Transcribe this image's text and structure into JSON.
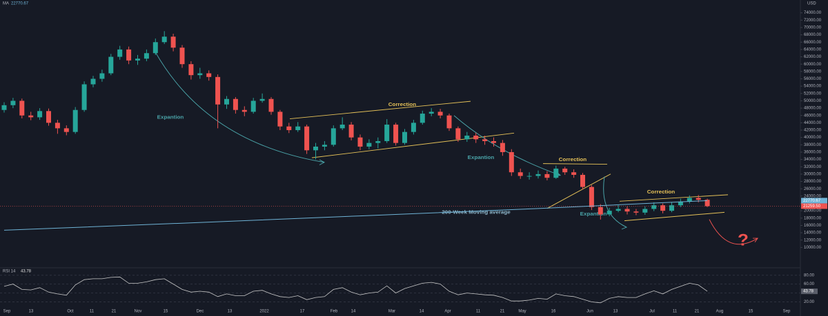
{
  "chart_data": {
    "type": "candlestick",
    "currency": "USD",
    "candles": {
      "up_color": "#26a69a",
      "down_color": "#ef5350",
      "open": [
        47500,
        48800,
        50000,
        46000,
        45500,
        47200,
        44000,
        42500,
        41500,
        47500,
        54500,
        56000,
        57500,
        62000,
        64000,
        61000,
        61500,
        63000,
        66000,
        67500,
        64500,
        60000,
        57000,
        57500,
        56500,
        49000,
        50500,
        47500,
        47000,
        50000,
        50500,
        47000,
        43000,
        42000,
        43000,
        36500,
        37500,
        38000,
        42500,
        43500,
        40000,
        37500,
        38500,
        39000,
        43500,
        38500,
        41500,
        44000,
        46500,
        47000,
        46000,
        42500,
        39500,
        40500,
        39500,
        39000,
        38500,
        36000,
        30500,
        29500,
        29500,
        30000,
        29000,
        31500,
        30500,
        29800,
        26500,
        21000,
        19000,
        20000,
        20500,
        19800,
        19500,
        20500,
        21500,
        20000,
        21500,
        22500,
        23500,
        23000
      ],
      "high": [
        49600,
        50800,
        50600,
        47000,
        48000,
        47900,
        44800,
        43300,
        48300,
        55300,
        56800,
        58500,
        62800,
        65000,
        64800,
        62500,
        64000,
        67000,
        69000,
        68300,
        65200,
        60800,
        59000,
        58300,
        57200,
        51300,
        51000,
        48500,
        50800,
        52000,
        51000,
        47500,
        44000,
        44200,
        43500,
        38500,
        39000,
        43300,
        45500,
        44200,
        40800,
        39500,
        40000,
        45000,
        44000,
        42300,
        44800,
        47300,
        48000,
        47800,
        46500,
        43000,
        41500,
        41300,
        40500,
        40000,
        39300,
        36800,
        31500,
        30500,
        31000,
        30800,
        32300,
        32000,
        31300,
        30300,
        27000,
        21800,
        20800,
        21500,
        21200,
        20500,
        21200,
        22300,
        22000,
        22300,
        23300,
        24200,
        24300,
        23300
      ],
      "low": [
        46800,
        48000,
        45200,
        44700,
        44800,
        43200,
        41000,
        40600,
        41000,
        47000,
        53700,
        55200,
        57000,
        61200,
        60000,
        59800,
        60800,
        62500,
        65500,
        63500,
        59000,
        55800,
        56000,
        55500,
        42500,
        47800,
        46500,
        45800,
        46500,
        49500,
        46200,
        42000,
        41200,
        41500,
        35500,
        34000,
        36500,
        37500,
        42000,
        39200,
        36500,
        36800,
        37000,
        38500,
        37800,
        38000,
        40800,
        43500,
        45800,
        45200,
        41800,
        38800,
        38800,
        38500,
        38000,
        37500,
        35000,
        29500,
        28700,
        28500,
        28800,
        28300,
        28700,
        29800,
        29000,
        25800,
        20200,
        17600,
        18500,
        19600,
        19000,
        18800,
        18900,
        19900,
        19300,
        19600,
        21000,
        22000,
        22300,
        21000
      ],
      "close": [
        48800,
        50000,
        46000,
        45500,
        47200,
        44000,
        42500,
        41500,
        47500,
        54500,
        56000,
        57500,
        62000,
        64000,
        61000,
        61500,
        63000,
        66000,
        67500,
        64500,
        60000,
        57000,
        57500,
        56500,
        49000,
        50500,
        47500,
        47000,
        50000,
        50500,
        47000,
        43000,
        42000,
        43000,
        36500,
        37500,
        38000,
        42500,
        43500,
        40000,
        37500,
        38500,
        39000,
        43500,
        38500,
        41500,
        44000,
        46500,
        47000,
        46000,
        42500,
        39500,
        40500,
        39500,
        39000,
        38500,
        36000,
        30500,
        29500,
        29500,
        30000,
        29000,
        31500,
        30500,
        29800,
        26500,
        21000,
        19000,
        20000,
        20500,
        19800,
        19500,
        20500,
        21500,
        20000,
        21500,
        22500,
        23500,
        23000,
        21259.5
      ]
    },
    "last_price_label": "21259.50",
    "ylim": [
      5000,
      76000
    ],
    "yticks": [
      {
        "value": 10000,
        "label": "10000.00"
      },
      {
        "value": 12000,
        "label": "12000.00"
      },
      {
        "value": 14000,
        "label": "14000.00"
      },
      {
        "value": 16000,
        "label": "16000.00"
      },
      {
        "value": 18000,
        "label": "18000.00"
      },
      {
        "value": 20000,
        "label": "20000.00"
      },
      {
        "value": 22000,
        "label": "22000.00"
      },
      {
        "value": 24000,
        "label": "24000.00"
      },
      {
        "value": 26000,
        "label": "26000.00"
      },
      {
        "value": 28000,
        "label": "28000.00"
      },
      {
        "value": 30000,
        "label": "30000.00"
      },
      {
        "value": 32000,
        "label": "32000.00"
      },
      {
        "value": 34000,
        "label": "34000.00"
      },
      {
        "value": 36000,
        "label": "36000.00"
      },
      {
        "value": 38000,
        "label": "38000.00"
      },
      {
        "value": 40000,
        "label": "40000.00"
      },
      {
        "value": 42000,
        "label": "42000.00"
      },
      {
        "value": 44000,
        "label": "44000.00"
      },
      {
        "value": 46000,
        "label": "46000.00"
      },
      {
        "value": 48000,
        "label": "48000.00"
      },
      {
        "value": 50000,
        "label": "50000.00"
      },
      {
        "value": 52000,
        "label": "52000.00"
      },
      {
        "value": 54000,
        "label": "54000.00"
      },
      {
        "value": 56000,
        "label": "56000.00"
      },
      {
        "value": 58000,
        "label": "58000.00"
      },
      {
        "value": 60000,
        "label": "60000.00"
      },
      {
        "value": 62000,
        "label": "62000.00"
      },
      {
        "value": 64000,
        "label": "64000.00"
      },
      {
        "value": 66000,
        "label": "66000.00"
      },
      {
        "value": 68000,
        "label": "68000.00"
      },
      {
        "value": 70000,
        "label": "70000.00"
      },
      {
        "value": 72000,
        "label": "72000.00"
      },
      {
        "value": 74000,
        "label": "74000.00"
      }
    ],
    "x_tick_labels": [
      "Sep",
      "13",
      "Oct",
      "11",
      "21",
      "Nov",
      "15",
      "Dec",
      "13",
      "2022",
      "17",
      "Feb",
      "14",
      "Mar",
      "14",
      "Apr",
      "11",
      "21",
      "May",
      "16",
      "Jun",
      "13",
      "Jul",
      "11",
      "21",
      "Aug",
      "15",
      "Sep"
    ],
    "ma": {
      "name": "MA",
      "color": "#6fb3d6",
      "x": [
        0,
        20,
        40,
        60,
        79
      ],
      "values": [
        14700,
        16600,
        18600,
        20600,
        22770.67
      ],
      "value_label": "22770.67"
    },
    "rsi": {
      "name": "RSI 14",
      "color": "#c8c8c8",
      "value_label": "43.78",
      "ylim": [
        10,
        95
      ],
      "yticks": [
        {
          "value": 20,
          "label": "20.00"
        },
        {
          "value": 40,
          "label": "40.00"
        },
        {
          "value": 60,
          "label": "60.00"
        },
        {
          "value": 80,
          "label": "80.00"
        }
      ],
      "values": [
        55,
        60,
        48,
        47,
        52,
        42,
        38,
        35,
        58,
        70,
        72,
        72,
        75,
        76,
        62,
        62,
        65,
        70,
        72,
        60,
        48,
        42,
        44,
        42,
        32,
        38,
        34,
        34,
        44,
        46,
        38,
        32,
        30,
        34,
        25,
        30,
        32,
        48,
        52,
        42,
        36,
        40,
        42,
        56,
        40,
        50,
        56,
        62,
        64,
        60,
        44,
        36,
        40,
        38,
        36,
        35,
        30,
        22,
        22,
        24,
        28,
        26,
        38,
        34,
        32,
        26,
        20,
        18,
        28,
        32,
        30,
        30,
        38,
        45,
        38,
        48,
        55,
        62,
        58,
        43.78
      ]
    },
    "annotations": {
      "corrections": [
        "Correction",
        "Correction",
        "Correction"
      ],
      "expansions": [
        "Expantion",
        "Expantion",
        "Expantion"
      ],
      "ma_note": "200-Week Moving average",
      "question": "?"
    }
  }
}
